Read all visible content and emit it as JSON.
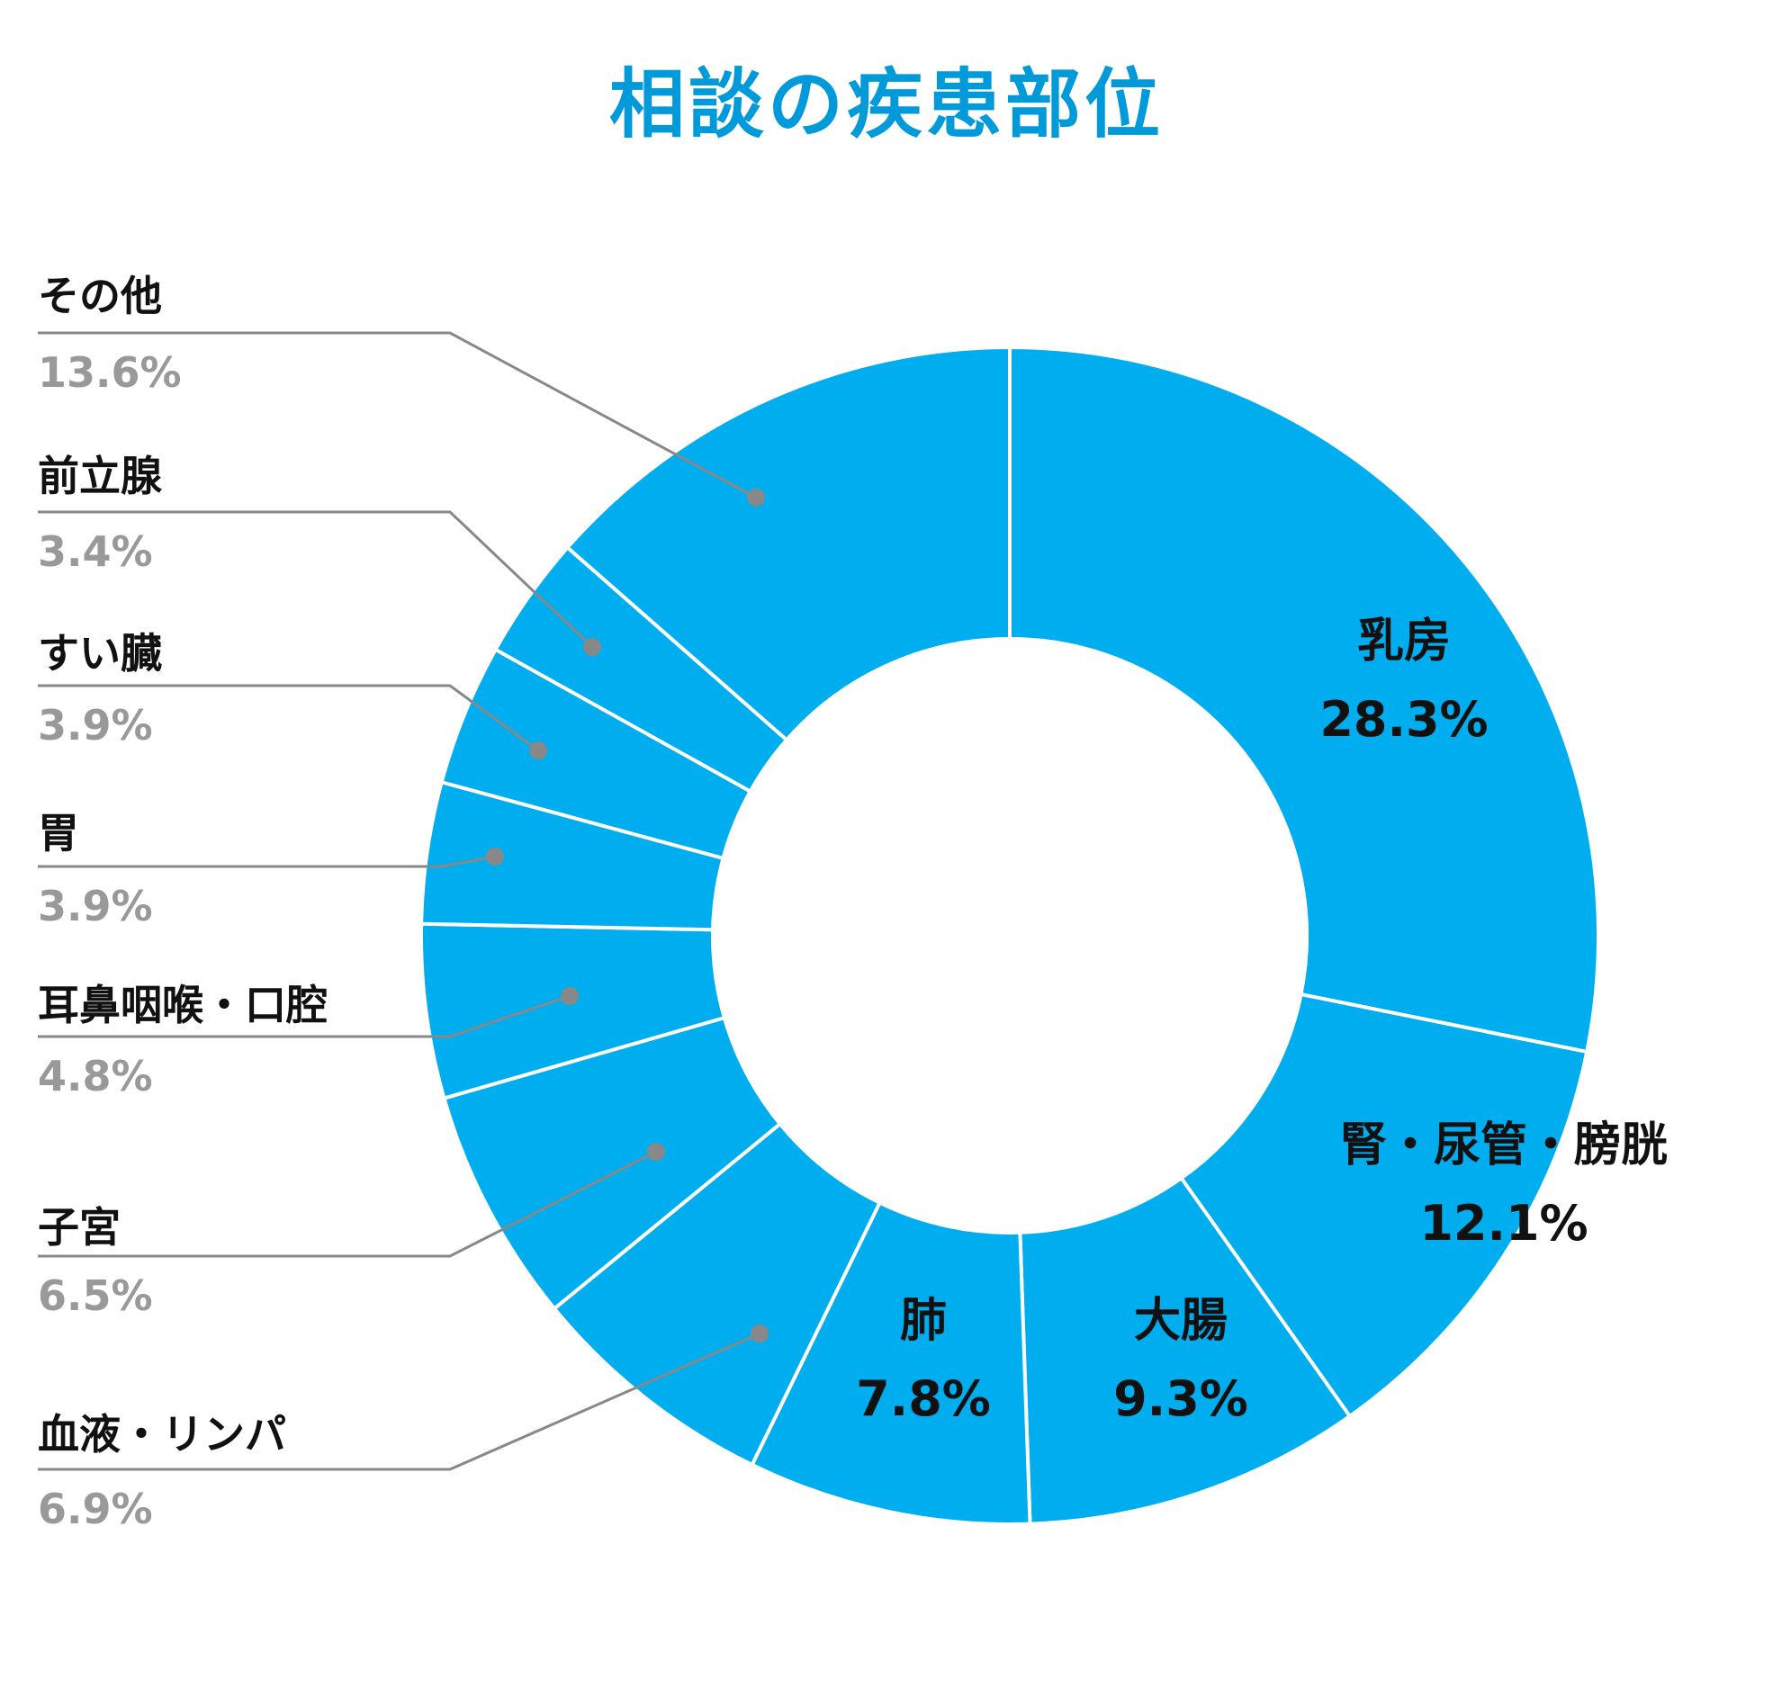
{
  "colors": {
    "title": "#0099d9",
    "slice": "#00adef",
    "slice_border": "#ffffff",
    "leader": "#888888",
    "dot": "#888888",
    "label_name": "#111111",
    "label_value": "#999999"
  },
  "chart_data": {
    "type": "pie",
    "variant": "donut",
    "title": "相談の疾患部位",
    "start": "12 o'clock, clockwise",
    "categories": [
      "乳房",
      "腎・尿管・膀胱",
      "大腸",
      "肺",
      "血液・リンパ",
      "子宮",
      "耳鼻咽喉・口腔",
      "胃",
      "すい臓",
      "前立腺",
      "その他"
    ],
    "values": [
      28.3,
      12.1,
      9.3,
      7.8,
      6.9,
      6.5,
      4.8,
      3.9,
      3.9,
      3.4,
      13.6
    ],
    "value_labels": [
      "28.3%",
      "12.1%",
      "9.3%",
      "7.8%",
      "6.9%",
      "6.5%",
      "4.8%",
      "3.9%",
      "3.9%",
      "3.4%",
      "13.6%"
    ],
    "label_placement": [
      "inside",
      "inside",
      "inside",
      "inside",
      "left-leader",
      "left-leader",
      "left-leader",
      "left-leader",
      "left-leader",
      "left-leader",
      "left-leader"
    ],
    "legend": "none",
    "grid": false
  }
}
